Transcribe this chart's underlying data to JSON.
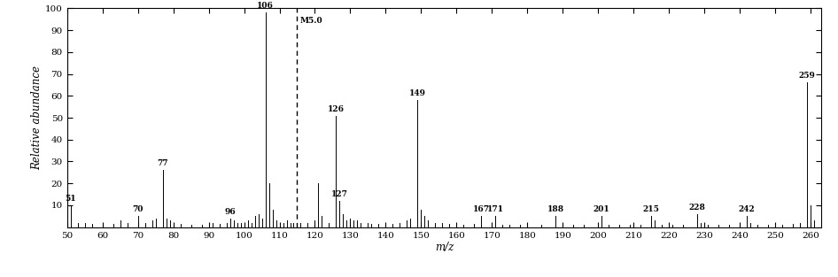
{
  "peaks": [
    {
      "mz": 51,
      "intensity": 10,
      "label": "51"
    },
    {
      "mz": 53,
      "intensity": 2,
      "label": ""
    },
    {
      "mz": 55,
      "intensity": 2,
      "label": ""
    },
    {
      "mz": 57,
      "intensity": 1.5,
      "label": ""
    },
    {
      "mz": 60,
      "intensity": 1,
      "label": ""
    },
    {
      "mz": 63,
      "intensity": 1.5,
      "label": ""
    },
    {
      "mz": 65,
      "intensity": 3,
      "label": ""
    },
    {
      "mz": 67,
      "intensity": 2,
      "label": ""
    },
    {
      "mz": 70,
      "intensity": 5,
      "label": "70"
    },
    {
      "mz": 72,
      "intensity": 2,
      "label": ""
    },
    {
      "mz": 74,
      "intensity": 3,
      "label": ""
    },
    {
      "mz": 75,
      "intensity": 4,
      "label": ""
    },
    {
      "mz": 77,
      "intensity": 26,
      "label": "77"
    },
    {
      "mz": 78,
      "intensity": 4,
      "label": ""
    },
    {
      "mz": 79,
      "intensity": 3,
      "label": ""
    },
    {
      "mz": 80,
      "intensity": 2,
      "label": ""
    },
    {
      "mz": 82,
      "intensity": 1.5,
      "label": ""
    },
    {
      "mz": 85,
      "intensity": 1,
      "label": ""
    },
    {
      "mz": 88,
      "intensity": 1,
      "label": ""
    },
    {
      "mz": 91,
      "intensity": 2,
      "label": ""
    },
    {
      "mz": 93,
      "intensity": 1.5,
      "label": ""
    },
    {
      "mz": 95,
      "intensity": 2,
      "label": ""
    },
    {
      "mz": 96,
      "intensity": 4,
      "label": "96"
    },
    {
      "mz": 97,
      "intensity": 3,
      "label": ""
    },
    {
      "mz": 98,
      "intensity": 2,
      "label": ""
    },
    {
      "mz": 99,
      "intensity": 2,
      "label": ""
    },
    {
      "mz": 100,
      "intensity": 2,
      "label": ""
    },
    {
      "mz": 101,
      "intensity": 3,
      "label": ""
    },
    {
      "mz": 102,
      "intensity": 2,
      "label": ""
    },
    {
      "mz": 103,
      "intensity": 5,
      "label": ""
    },
    {
      "mz": 104,
      "intensity": 6,
      "label": ""
    },
    {
      "mz": 105,
      "intensity": 4,
      "label": ""
    },
    {
      "mz": 106,
      "intensity": 98,
      "label": "106"
    },
    {
      "mz": 107,
      "intensity": 20,
      "label": ""
    },
    {
      "mz": 108,
      "intensity": 8,
      "label": ""
    },
    {
      "mz": 109,
      "intensity": 3,
      "label": ""
    },
    {
      "mz": 111,
      "intensity": 2,
      "label": ""
    },
    {
      "mz": 112,
      "intensity": 3,
      "label": ""
    },
    {
      "mz": 113,
      "intensity": 2,
      "label": ""
    },
    {
      "mz": 114,
      "intensity": 2,
      "label": ""
    },
    {
      "mz": 116,
      "intensity": 2,
      "label": ""
    },
    {
      "mz": 118,
      "intensity": 2,
      "label": ""
    },
    {
      "mz": 120,
      "intensity": 3,
      "label": ""
    },
    {
      "mz": 121,
      "intensity": 20,
      "label": ""
    },
    {
      "mz": 122,
      "intensity": 5,
      "label": ""
    },
    {
      "mz": 124,
      "intensity": 2,
      "label": ""
    },
    {
      "mz": 126,
      "intensity": 51,
      "label": "126"
    },
    {
      "mz": 127,
      "intensity": 12,
      "label": "127"
    },
    {
      "mz": 128,
      "intensity": 6,
      "label": ""
    },
    {
      "mz": 129,
      "intensity": 3,
      "label": ""
    },
    {
      "mz": 130,
      "intensity": 4,
      "label": ""
    },
    {
      "mz": 131,
      "intensity": 3,
      "label": ""
    },
    {
      "mz": 132,
      "intensity": 3,
      "label": ""
    },
    {
      "mz": 133,
      "intensity": 2,
      "label": ""
    },
    {
      "mz": 135,
      "intensity": 2,
      "label": ""
    },
    {
      "mz": 136,
      "intensity": 1.5,
      "label": ""
    },
    {
      "mz": 138,
      "intensity": 1.5,
      "label": ""
    },
    {
      "mz": 140,
      "intensity": 2,
      "label": ""
    },
    {
      "mz": 142,
      "intensity": 1.5,
      "label": ""
    },
    {
      "mz": 144,
      "intensity": 2,
      "label": ""
    },
    {
      "mz": 146,
      "intensity": 3,
      "label": ""
    },
    {
      "mz": 147,
      "intensity": 4,
      "label": ""
    },
    {
      "mz": 149,
      "intensity": 58,
      "label": "149"
    },
    {
      "mz": 150,
      "intensity": 8,
      "label": ""
    },
    {
      "mz": 151,
      "intensity": 5,
      "label": ""
    },
    {
      "mz": 152,
      "intensity": 3,
      "label": ""
    },
    {
      "mz": 154,
      "intensity": 2,
      "label": ""
    },
    {
      "mz": 156,
      "intensity": 2,
      "label": ""
    },
    {
      "mz": 158,
      "intensity": 1.5,
      "label": ""
    },
    {
      "mz": 160,
      "intensity": 1,
      "label": ""
    },
    {
      "mz": 162,
      "intensity": 1,
      "label": ""
    },
    {
      "mz": 165,
      "intensity": 1.5,
      "label": ""
    },
    {
      "mz": 167,
      "intensity": 5,
      "label": "167"
    },
    {
      "mz": 171,
      "intensity": 5,
      "label": "171"
    },
    {
      "mz": 173,
      "intensity": 1,
      "label": ""
    },
    {
      "mz": 175,
      "intensity": 1,
      "label": ""
    },
    {
      "mz": 178,
      "intensity": 1,
      "label": ""
    },
    {
      "mz": 180,
      "intensity": 1,
      "label": ""
    },
    {
      "mz": 184,
      "intensity": 1,
      "label": ""
    },
    {
      "mz": 188,
      "intensity": 5,
      "label": "188"
    },
    {
      "mz": 190,
      "intensity": 1,
      "label": ""
    },
    {
      "mz": 193,
      "intensity": 1,
      "label": ""
    },
    {
      "mz": 196,
      "intensity": 1,
      "label": ""
    },
    {
      "mz": 201,
      "intensity": 5,
      "label": "201"
    },
    {
      "mz": 203,
      "intensity": 1,
      "label": ""
    },
    {
      "mz": 206,
      "intensity": 1,
      "label": ""
    },
    {
      "mz": 209,
      "intensity": 1,
      "label": ""
    },
    {
      "mz": 212,
      "intensity": 1,
      "label": ""
    },
    {
      "mz": 215,
      "intensity": 5,
      "label": "215"
    },
    {
      "mz": 216,
      "intensity": 3,
      "label": ""
    },
    {
      "mz": 218,
      "intensity": 1,
      "label": ""
    },
    {
      "mz": 221,
      "intensity": 1,
      "label": ""
    },
    {
      "mz": 224,
      "intensity": 1,
      "label": ""
    },
    {
      "mz": 228,
      "intensity": 6,
      "label": "228"
    },
    {
      "mz": 229,
      "intensity": 2,
      "label": ""
    },
    {
      "mz": 231,
      "intensity": 1,
      "label": ""
    },
    {
      "mz": 234,
      "intensity": 1,
      "label": ""
    },
    {
      "mz": 237,
      "intensity": 1,
      "label": ""
    },
    {
      "mz": 242,
      "intensity": 5,
      "label": "242"
    },
    {
      "mz": 243,
      "intensity": 2,
      "label": ""
    },
    {
      "mz": 245,
      "intensity": 1,
      "label": ""
    },
    {
      "mz": 248,
      "intensity": 1,
      "label": ""
    },
    {
      "mz": 252,
      "intensity": 1,
      "label": ""
    },
    {
      "mz": 255,
      "intensity": 1.5,
      "label": ""
    },
    {
      "mz": 257,
      "intensity": 2,
      "label": ""
    },
    {
      "mz": 259,
      "intensity": 66,
      "label": "259"
    },
    {
      "mz": 260,
      "intensity": 10,
      "label": ""
    },
    {
      "mz": 261,
      "intensity": 3,
      "label": ""
    }
  ],
  "dashed_line_mz": 115.0,
  "dashed_line_label": "M5.0",
  "xmin": 50,
  "xmax": 263,
  "ymin": 0,
  "ymax": 100,
  "xlabel": "m/z",
  "ylabel": "Relative abundance",
  "xticks": [
    50,
    60,
    70,
    80,
    90,
    100,
    110,
    120,
    130,
    140,
    150,
    160,
    170,
    180,
    190,
    200,
    210,
    220,
    230,
    240,
    250,
    260
  ],
  "yticks": [
    10,
    20,
    30,
    40,
    50,
    60,
    70,
    80,
    90,
    100
  ],
  "bar_color": "#000000",
  "label_fontsize": 6.5,
  "axis_fontsize": 8.5,
  "tick_fontsize": 7.5
}
